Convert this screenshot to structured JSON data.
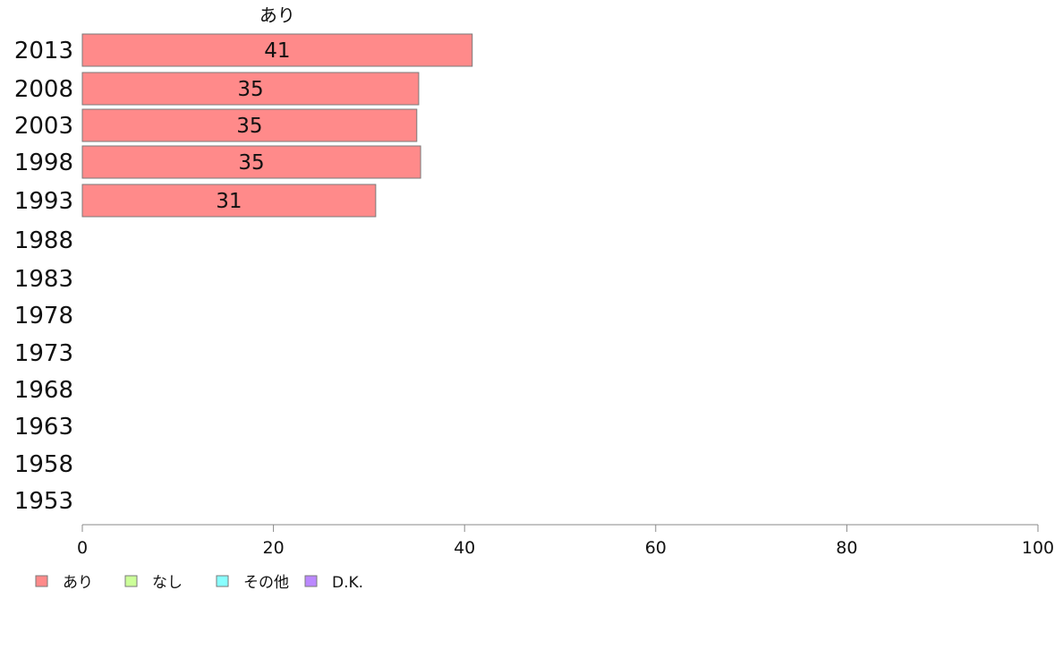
{
  "chart_data": {
    "type": "bar",
    "orientation": "horizontal",
    "stacked": true,
    "categories": [
      "2013",
      "2008",
      "2003",
      "1998",
      "1993",
      "1988",
      "1983",
      "1978",
      "1973",
      "1968",
      "1963",
      "1958",
      "1953"
    ],
    "series": [
      {
        "name": "あり",
        "color": "#ff8a8a",
        "values": [
          40.8,
          35.2,
          35.0,
          35.4,
          30.7,
          null,
          null,
          null,
          null,
          null,
          null,
          null,
          null
        ],
        "labels": [
          "41",
          "35",
          "35",
          "35",
          "31",
          "",
          "",
          "",
          "",
          "",
          "",
          "",
          ""
        ]
      },
      {
        "name": "なし",
        "color": "#ccff99",
        "values": [
          null,
          null,
          null,
          null,
          null,
          null,
          null,
          null,
          null,
          null,
          null,
          null,
          null
        ],
        "labels": [
          "",
          "",
          "",
          "",
          "",
          "",
          "",
          "",
          "",
          "",
          "",
          "",
          ""
        ]
      },
      {
        "name": "その他",
        "color": "#88ffff",
        "values": [
          null,
          null,
          null,
          null,
          null,
          null,
          null,
          null,
          null,
          null,
          null,
          null,
          null
        ],
        "labels": [
          "",
          "",
          "",
          "",
          "",
          "",
          "",
          "",
          "",
          "",
          "",
          "",
          ""
        ]
      },
      {
        "name": "D.K.",
        "color": "#bb88ff",
        "values": [
          null,
          null,
          null,
          null,
          null,
          null,
          null,
          null,
          null,
          null,
          null,
          null,
          null
        ],
        "labels": [
          "",
          "",
          "",
          "",
          "",
          "",
          "",
          "",
          "",
          "",
          "",
          "",
          ""
        ]
      }
    ],
    "header_label": "あり",
    "xlim": [
      0,
      100
    ],
    "xticks": [
      0,
      20,
      40,
      60,
      80,
      100
    ],
    "xtick_labels": [
      "0",
      "20",
      "40",
      "60",
      "80",
      "100"
    ],
    "grid": false,
    "legend_position": "bottom-left",
    "title": "",
    "xlabel": "",
    "ylabel": ""
  }
}
